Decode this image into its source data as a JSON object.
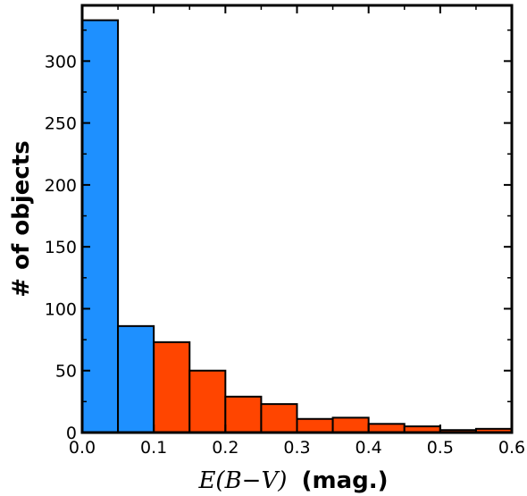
{
  "chart_data": {
    "type": "bar",
    "title": "",
    "xlabel": "E(B−V) (mag.)",
    "xlabel_math": "E(B−V)",
    "xlabel_unit": "(mag.)",
    "ylabel": "# of objects",
    "xlim": [
      0.0,
      0.6
    ],
    "ylim": [
      0,
      345
    ],
    "xticks": [
      0.0,
      0.1,
      0.2,
      0.3,
      0.4,
      0.5,
      0.6
    ],
    "xtick_labels": [
      "0.0",
      "0.1",
      "0.2",
      "0.3",
      "0.4",
      "0.5",
      "0.6"
    ],
    "yticks": [
      0,
      50,
      100,
      150,
      200,
      250,
      300
    ],
    "ytick_labels": [
      "0",
      "50",
      "100",
      "150",
      "200",
      "250",
      "300"
    ],
    "grid": false,
    "bins": [
      {
        "x0": 0.0,
        "x1": 0.05,
        "count": 333,
        "color": "#1e90ff"
      },
      {
        "x0": 0.05,
        "x1": 0.1,
        "count": 86,
        "color": "#1e90ff"
      },
      {
        "x0": 0.1,
        "x1": 0.15,
        "count": 73,
        "color": "#ff4500"
      },
      {
        "x0": 0.15,
        "x1": 0.2,
        "count": 50,
        "color": "#ff4500"
      },
      {
        "x0": 0.2,
        "x1": 0.25,
        "count": 29,
        "color": "#ff4500"
      },
      {
        "x0": 0.25,
        "x1": 0.3,
        "count": 23,
        "color": "#ff4500"
      },
      {
        "x0": 0.3,
        "x1": 0.35,
        "count": 11,
        "color": "#ff4500"
      },
      {
        "x0": 0.35,
        "x1": 0.4,
        "count": 12,
        "color": "#ff4500"
      },
      {
        "x0": 0.4,
        "x1": 0.45,
        "count": 7,
        "color": "#ff4500"
      },
      {
        "x0": 0.45,
        "x1": 0.5,
        "count": 5,
        "color": "#ff4500"
      },
      {
        "x0": 0.5,
        "x1": 0.55,
        "count": 2,
        "color": "#ff4500"
      },
      {
        "x0": 0.55,
        "x1": 0.6,
        "count": 3,
        "color": "#ff4500"
      }
    ]
  }
}
